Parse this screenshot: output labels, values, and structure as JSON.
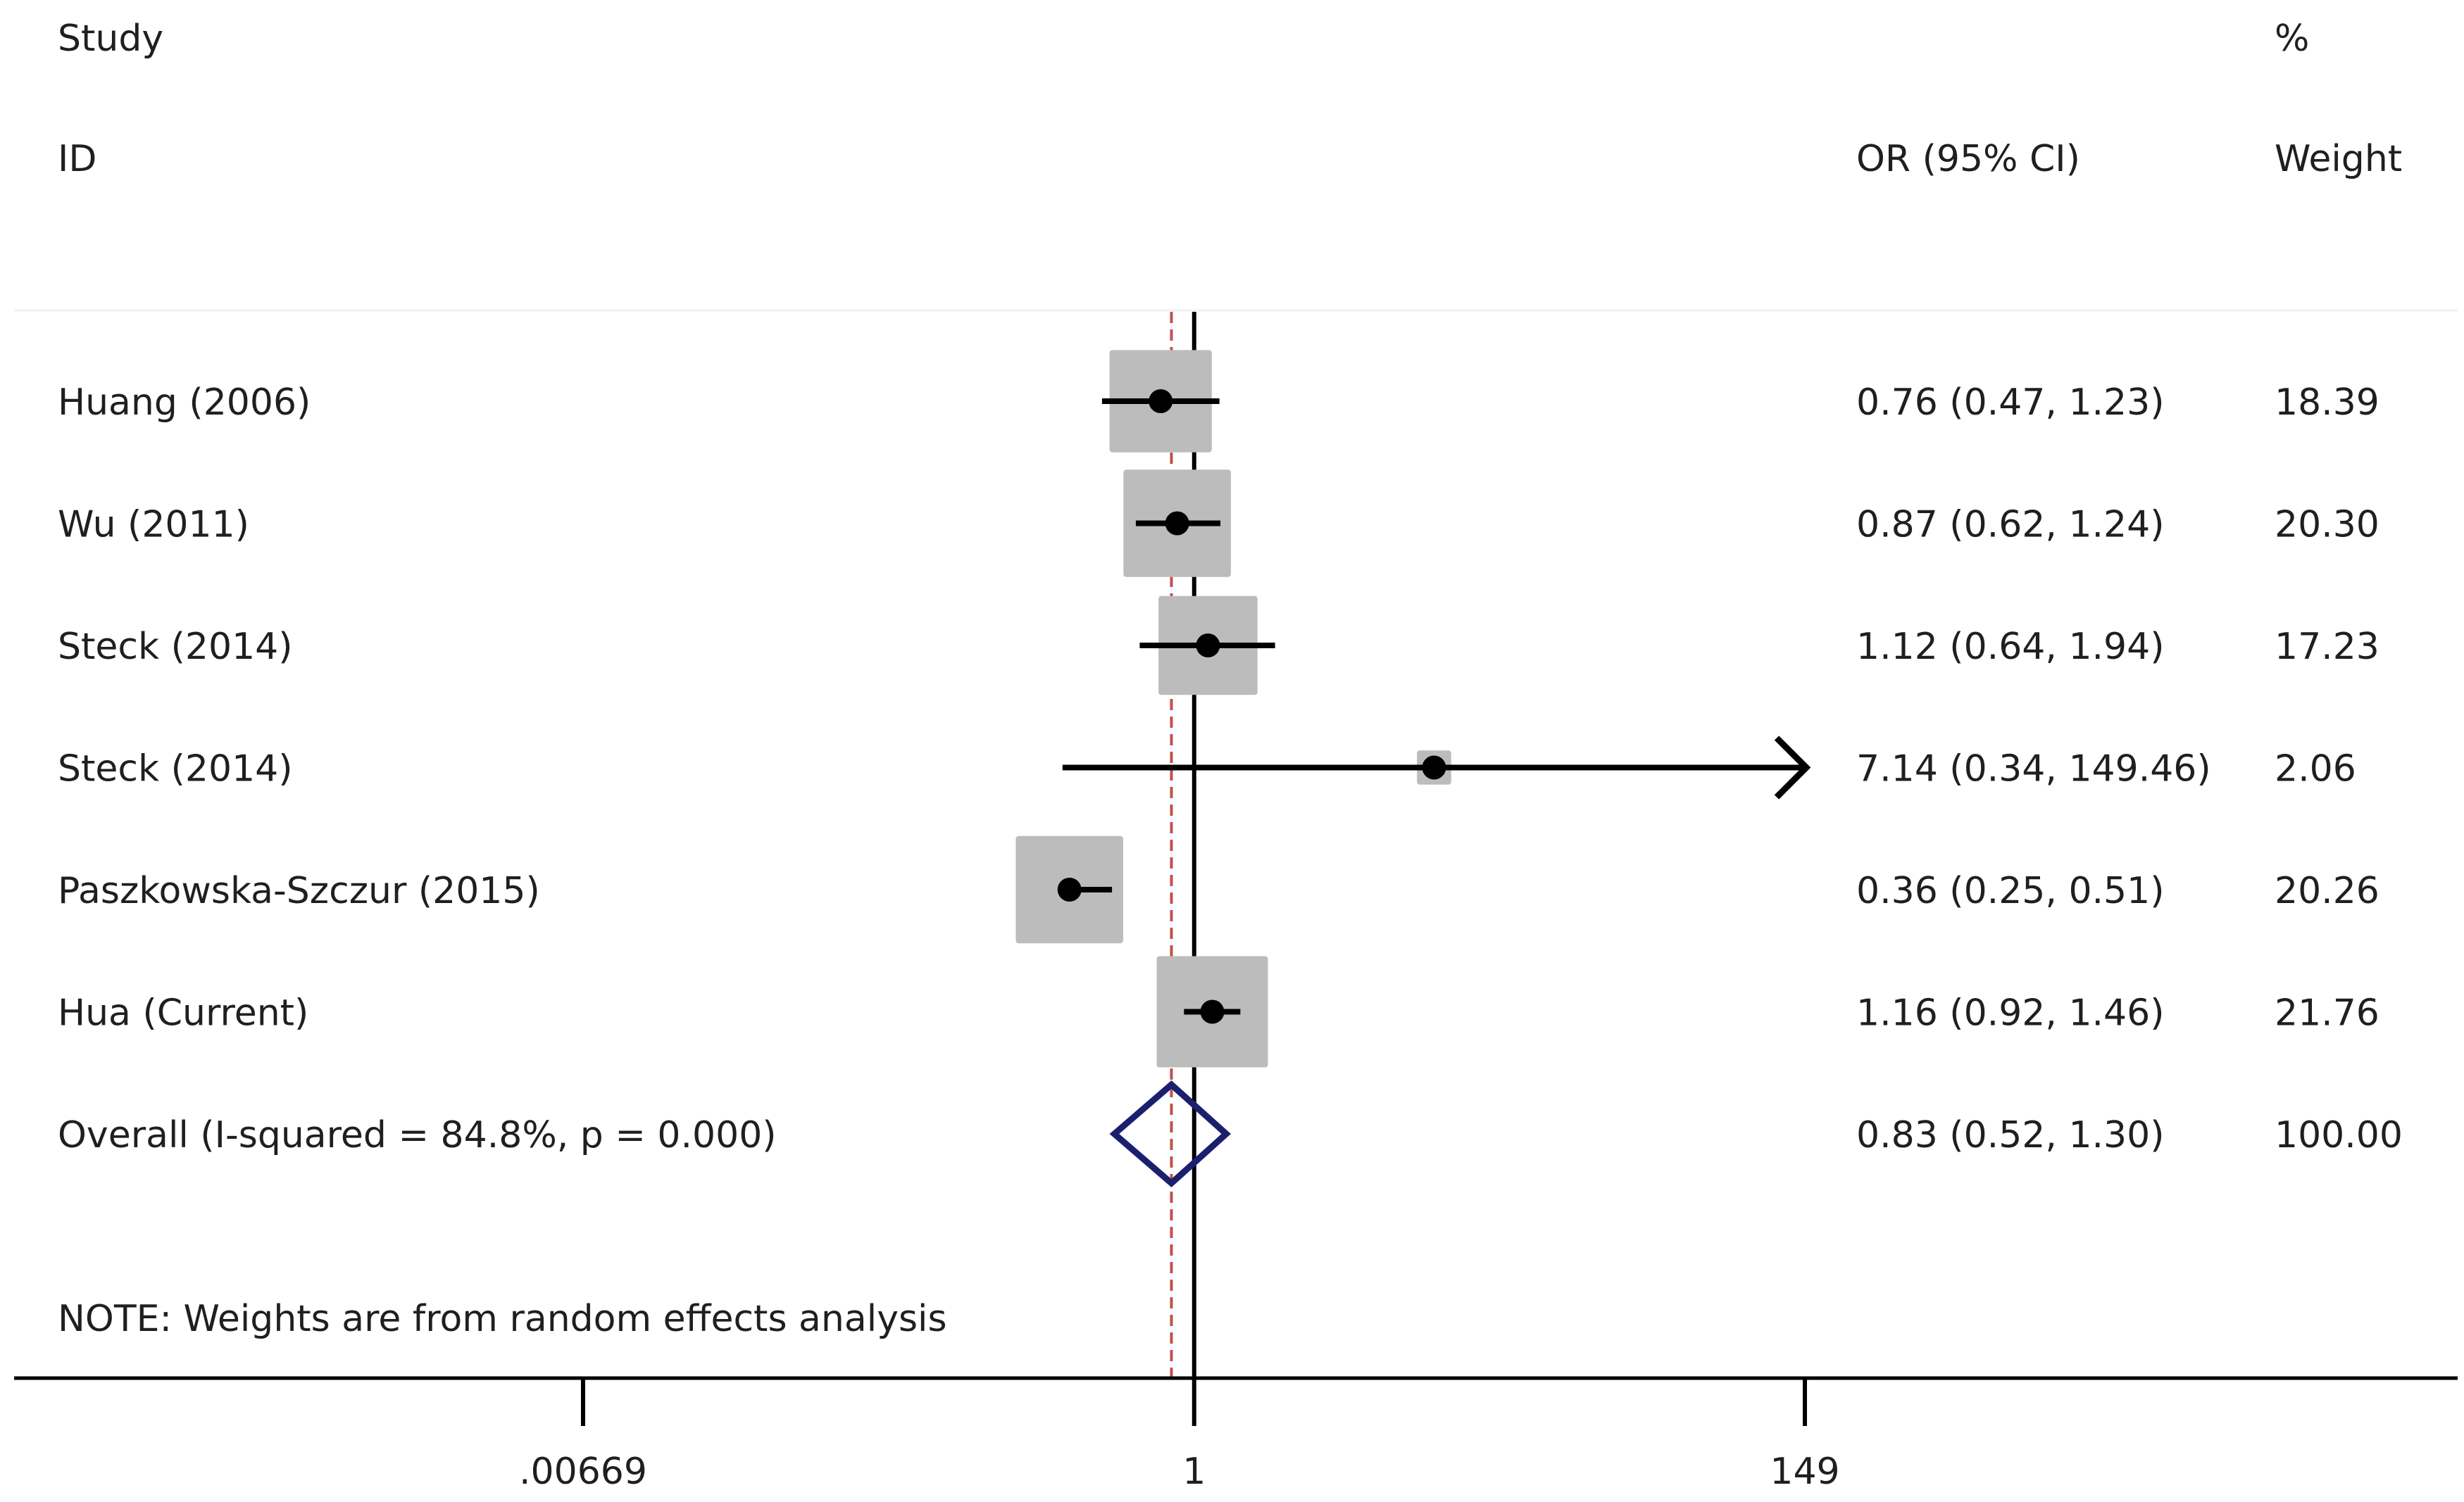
{
  "header": {
    "study": "Study",
    "id": "ID",
    "percent": "%",
    "weight": "Weight",
    "ci_header": "OR (95% CI)"
  },
  "note": "NOTE: Weights are from random effects analysis",
  "chart_data": {
    "type": "forest",
    "x_scale": "log",
    "xlim": [
      0.00669,
      149
    ],
    "x_ticks": [
      {
        "value": 0.00669,
        "label": ".00669"
      },
      {
        "value": 1,
        "label": "1"
      },
      {
        "value": 149,
        "label": "149"
      }
    ],
    "null_line": 1,
    "overall_line": 0.83,
    "studies": [
      {
        "name": "Huang (2006)",
        "or": 0.76,
        "lower": 0.47,
        "upper": 1.23,
        "ci_text": "0.76 (0.47, 1.23)",
        "weight": 18.39,
        "weight_text": "18.39"
      },
      {
        "name": "Wu (2011)",
        "or": 0.87,
        "lower": 0.62,
        "upper": 1.24,
        "ci_text": "0.87 (0.62, 1.24)",
        "weight": 20.3,
        "weight_text": "20.30"
      },
      {
        "name": "Steck (2014)",
        "or": 1.12,
        "lower": 0.64,
        "upper": 1.94,
        "ci_text": "1.12 (0.64, 1.94)",
        "weight": 17.23,
        "weight_text": "17.23"
      },
      {
        "name": "Steck (2014)",
        "or": 7.14,
        "lower": 0.34,
        "upper": 149.46,
        "ci_text": "7.14 (0.34, 149.46)",
        "weight": 2.06,
        "weight_text": "2.06"
      },
      {
        "name": "Paszkowska-Szczur (2015)",
        "or": 0.36,
        "lower": 0.25,
        "upper": 0.51,
        "ci_text": "0.36 (0.25, 0.51)",
        "weight": 20.26,
        "weight_text": "20.26"
      },
      {
        "name": "Hua  (Current)",
        "or": 1.16,
        "lower": 0.92,
        "upper": 1.46,
        "ci_text": "1.16 (0.92, 1.46)",
        "weight": 21.76,
        "weight_text": "21.76"
      }
    ],
    "overall": {
      "name": "Overall  (I-squared = 84.8%, p = 0.000)",
      "or": 0.83,
      "lower": 0.52,
      "upper": 1.3,
      "ci_text": "0.83 (0.52, 1.30)",
      "weight_text": "100.00"
    },
    "colors": {
      "box": "#bcbcbc",
      "ci_line": "#000000",
      "diamond": "#1a1f6e",
      "overall_line": "#c0504d",
      "axis": "#000000"
    }
  }
}
